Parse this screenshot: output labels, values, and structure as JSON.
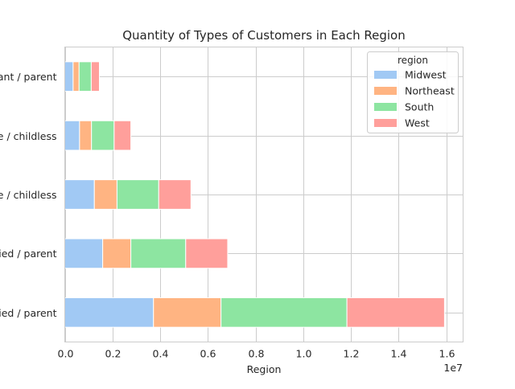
{
  "chart_data": {
    "type": "bar",
    "orientation": "horizontal",
    "stacked": true,
    "title": "Quantity of Types of Customers in Each Region",
    "xlabel": "Region",
    "ylabel": "",
    "x_scale_label": "1e7",
    "x_tick_labels": [
      "0.0",
      "0.2",
      "0.4",
      "0.6",
      "0.8",
      "1.0",
      "1.2",
      "1.4",
      "1.6"
    ],
    "x_ticks": [
      0,
      2000000,
      4000000,
      6000000,
      8000000,
      10000000,
      12000000,
      14000000,
      16000000
    ],
    "xlim": [
      0,
      16700000
    ],
    "categories": [
      "ried / parent",
      "ried / parent",
      "e / childless",
      "e / childless",
      "ant / parent"
    ],
    "series": [
      {
        "name": "Midwest",
        "values": [
          3720000,
          1590000,
          1240000,
          620000,
          350000
        ],
        "color": "#a1c9f4"
      },
      {
        "name": "Northeast",
        "values": [
          2830000,
          1180000,
          950000,
          500000,
          250000
        ],
        "color": "#ffb482"
      },
      {
        "name": "South",
        "values": [
          5280000,
          2300000,
          1750000,
          950000,
          510000
        ],
        "color": "#8de5a1"
      },
      {
        "name": "West",
        "values": [
          4090000,
          1760000,
          1350000,
          700000,
          340000
        ],
        "color": "#ff9f9b"
      }
    ],
    "grid": true,
    "legend": {
      "title": "region",
      "placement": "top-right"
    }
  }
}
